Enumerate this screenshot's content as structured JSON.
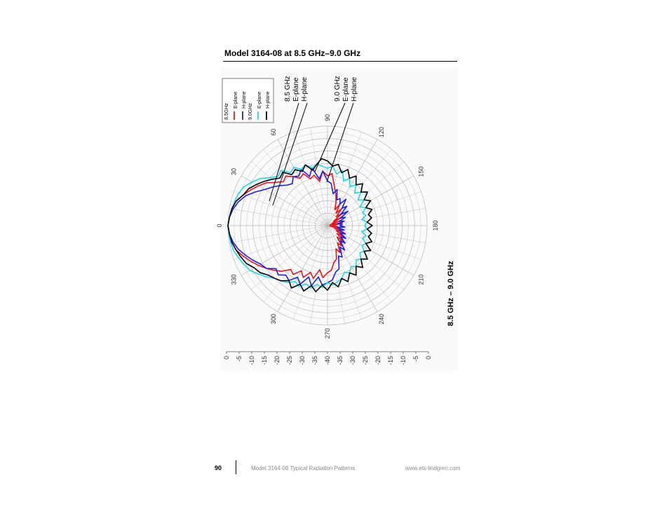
{
  "page": {
    "heading": "Model 3164-08 at 8.5 GHz–9.0 GHz",
    "footer_page_number": "90",
    "footer_title": "Model 3164-08 Typical Radiation Patterns",
    "footer_url": "www.ets-lindgren.com"
  },
  "colors": {
    "e_85": "#e8141c",
    "h_85": "#1a22e0",
    "e_90": "#22d8e8",
    "h_90": "#000000",
    "grid": "#b8b8b8"
  },
  "chart_data": {
    "type": "polar",
    "orientation": "rotated-90-ccw",
    "title": "8.5 GHz – 9.0 GHz",
    "angle_unit": "degrees",
    "angle_ticks": [
      "0",
      "30",
      "60",
      "90",
      "120",
      "150",
      "180",
      "210",
      "240",
      "270",
      "300",
      "330"
    ],
    "radial_unit": "dB",
    "radial_range": [
      -40,
      0
    ],
    "radial_ticks": [
      "0",
      "-5",
      "-10",
      "-15",
      "-20",
      "-25",
      "-30",
      "-35",
      "-40",
      "-35",
      "-30",
      "-25",
      "-20",
      "-15",
      "-10",
      "-5",
      "0"
    ],
    "grid": true,
    "legend": {
      "position": "top-left",
      "groups": [
        {
          "label": "8.5GHz",
          "entries": [
            {
              "series": "e_85",
              "label": "E-plane"
            },
            {
              "series": "h_85",
              "label": "H-plane"
            }
          ]
        },
        {
          "label": "9.0GHz",
          "entries": [
            {
              "series": "e_90",
              "label": "E-plane"
            },
            {
              "series": "h_90",
              "label": "H-plane"
            }
          ]
        }
      ]
    },
    "annotations": [
      {
        "lines": [
          "8.5 GHz",
          "E-plane",
          "H-plane"
        ]
      },
      {
        "lines": [
          "9.0 GHz",
          "E-plane",
          "H-plane"
        ]
      }
    ],
    "series": [
      {
        "key": "e_85",
        "values": [
          [
            0,
            0
          ],
          [
            5,
            -0.5
          ],
          [
            10,
            -1
          ],
          [
            15,
            -2
          ],
          [
            20,
            -4
          ],
          [
            25,
            -6
          ],
          [
            30,
            -8
          ],
          [
            35,
            -10
          ],
          [
            40,
            -13
          ],
          [
            45,
            -15
          ],
          [
            50,
            -14
          ],
          [
            55,
            -16
          ],
          [
            60,
            -18
          ],
          [
            65,
            -17
          ],
          [
            70,
            -20
          ],
          [
            75,
            -19
          ],
          [
            80,
            -22
          ],
          [
            85,
            -18
          ],
          [
            90,
            -20
          ],
          [
            95,
            -19
          ],
          [
            100,
            -24
          ],
          [
            105,
            -27
          ],
          [
            110,
            -30
          ],
          [
            115,
            -33
          ],
          [
            120,
            -30
          ],
          [
            125,
            -34
          ],
          [
            130,
            -31
          ],
          [
            135,
            -35
          ],
          [
            140,
            -32
          ],
          [
            145,
            -37
          ],
          [
            150,
            -33
          ],
          [
            155,
            -38
          ],
          [
            160,
            -35
          ],
          [
            165,
            -39
          ],
          [
            170,
            -34
          ],
          [
            175,
            -37
          ],
          [
            180,
            -38
          ],
          [
            185,
            -36
          ],
          [
            190,
            -39
          ],
          [
            195,
            -34
          ],
          [
            200,
            -37
          ],
          [
            205,
            -33
          ],
          [
            210,
            -36
          ],
          [
            215,
            -32
          ],
          [
            220,
            -35
          ],
          [
            225,
            -31
          ],
          [
            230,
            -34
          ],
          [
            235,
            -30
          ],
          [
            240,
            -32
          ],
          [
            245,
            -28
          ],
          [
            250,
            -30
          ],
          [
            255,
            -26
          ],
          [
            260,
            -25
          ],
          [
            265,
            -22
          ],
          [
            270,
            -21
          ],
          [
            275,
            -19
          ],
          [
            280,
            -22
          ],
          [
            285,
            -18
          ],
          [
            290,
            -20
          ],
          [
            295,
            -17
          ],
          [
            300,
            -19
          ],
          [
            305,
            -16
          ],
          [
            310,
            -17
          ],
          [
            315,
            -14
          ],
          [
            320,
            -12
          ],
          [
            325,
            -10
          ],
          [
            330,
            -8
          ],
          [
            335,
            -6
          ],
          [
            340,
            -4
          ],
          [
            345,
            -2
          ],
          [
            350,
            -1
          ],
          [
            355,
            -0.5
          ]
        ]
      },
      {
        "key": "h_85",
        "values": [
          [
            0,
            0
          ],
          [
            5,
            -0.5
          ],
          [
            10,
            -1.5
          ],
          [
            15,
            -3
          ],
          [
            20,
            -5
          ],
          [
            25,
            -8
          ],
          [
            30,
            -11
          ],
          [
            35,
            -13
          ],
          [
            40,
            -15
          ],
          [
            45,
            -17
          ],
          [
            50,
            -18
          ],
          [
            55,
            -16
          ],
          [
            60,
            -17
          ],
          [
            65,
            -15
          ],
          [
            70,
            -19
          ],
          [
            75,
            -16
          ],
          [
            80,
            -21
          ],
          [
            85,
            -18
          ],
          [
            90,
            -22
          ],
          [
            95,
            -23
          ],
          [
            100,
            -27
          ],
          [
            105,
            -25
          ],
          [
            110,
            -29
          ],
          [
            115,
            -28
          ],
          [
            120,
            -30
          ],
          [
            125,
            -27
          ],
          [
            130,
            -31
          ],
          [
            135,
            -29
          ],
          [
            140,
            -33
          ],
          [
            145,
            -30
          ],
          [
            150,
            -34
          ],
          [
            155,
            -32
          ],
          [
            160,
            -35
          ],
          [
            165,
            -33
          ],
          [
            170,
            -36
          ],
          [
            175,
            -34
          ],
          [
            180,
            -35
          ],
          [
            185,
            -33
          ],
          [
            190,
            -36
          ],
          [
            195,
            -33
          ],
          [
            200,
            -35
          ],
          [
            205,
            -32
          ],
          [
            210,
            -34
          ],
          [
            215,
            -31
          ],
          [
            220,
            -33
          ],
          [
            225,
            -30
          ],
          [
            230,
            -32
          ],
          [
            235,
            -28
          ],
          [
            240,
            -30
          ],
          [
            245,
            -26
          ],
          [
            250,
            -27
          ],
          [
            255,
            -22
          ],
          [
            260,
            -21
          ],
          [
            265,
            -18
          ],
          [
            270,
            -17
          ],
          [
            275,
            -16
          ],
          [
            280,
            -19
          ],
          [
            285,
            -15
          ],
          [
            290,
            -18
          ],
          [
            295,
            -14
          ],
          [
            300,
            -16
          ],
          [
            305,
            -13
          ],
          [
            310,
            -14
          ],
          [
            315,
            -12
          ],
          [
            320,
            -13
          ],
          [
            325,
            -10
          ],
          [
            330,
            -9
          ],
          [
            335,
            -7
          ],
          [
            340,
            -5
          ],
          [
            345,
            -3
          ],
          [
            350,
            -1.5
          ],
          [
            355,
            -0.5
          ]
        ]
      },
      {
        "key": "e_90",
        "values": [
          [
            0,
            0
          ],
          [
            5,
            -0.5
          ],
          [
            10,
            -1
          ],
          [
            15,
            -1.5
          ],
          [
            20,
            -2
          ],
          [
            25,
            -3
          ],
          [
            30,
            -5
          ],
          [
            35,
            -7
          ],
          [
            40,
            -10
          ],
          [
            45,
            -12
          ],
          [
            50,
            -11
          ],
          [
            55,
            -14
          ],
          [
            60,
            -13
          ],
          [
            65,
            -15
          ],
          [
            70,
            -14
          ],
          [
            75,
            -16
          ],
          [
            80,
            -15
          ],
          [
            85,
            -16
          ],
          [
            90,
            -17
          ],
          [
            95,
            -16
          ],
          [
            100,
            -19
          ],
          [
            105,
            -17
          ],
          [
            110,
            -21
          ],
          [
            115,
            -19
          ],
          [
            120,
            -22
          ],
          [
            125,
            -20
          ],
          [
            130,
            -23
          ],
          [
            135,
            -21
          ],
          [
            140,
            -24
          ],
          [
            145,
            -22
          ],
          [
            150,
            -25
          ],
          [
            155,
            -23
          ],
          [
            160,
            -25
          ],
          [
            165,
            -24
          ],
          [
            170,
            -26
          ],
          [
            175,
            -24
          ],
          [
            180,
            -25
          ],
          [
            185,
            -24
          ],
          [
            190,
            -26
          ],
          [
            195,
            -24
          ],
          [
            200,
            -25
          ],
          [
            205,
            -23
          ],
          [
            210,
            -24
          ],
          [
            215,
            -22
          ],
          [
            220,
            -23
          ],
          [
            225,
            -21
          ],
          [
            230,
            -22
          ],
          [
            235,
            -20
          ],
          [
            240,
            -21
          ],
          [
            245,
            -19
          ],
          [
            250,
            -20
          ],
          [
            255,
            -18
          ],
          [
            260,
            -17
          ],
          [
            265,
            -16
          ],
          [
            270,
            -17
          ],
          [
            275,
            -15
          ],
          [
            280,
            -16
          ],
          [
            285,
            -14
          ],
          [
            290,
            -15
          ],
          [
            295,
            -13
          ],
          [
            300,
            -14
          ],
          [
            305,
            -12
          ],
          [
            310,
            -11
          ],
          [
            315,
            -10
          ],
          [
            320,
            -8
          ],
          [
            325,
            -6
          ],
          [
            330,
            -4
          ],
          [
            335,
            -3
          ],
          [
            340,
            -2
          ],
          [
            345,
            -1
          ],
          [
            350,
            -0.5
          ],
          [
            355,
            -0.2
          ]
        ]
      },
      {
        "key": "h_90",
        "values": [
          [
            0,
            0
          ],
          [
            5,
            -0.5
          ],
          [
            10,
            -1
          ],
          [
            15,
            -2
          ],
          [
            20,
            -4
          ],
          [
            25,
            -5
          ],
          [
            30,
            -7
          ],
          [
            35,
            -9
          ],
          [
            40,
            -11
          ],
          [
            45,
            -13
          ],
          [
            50,
            -12
          ],
          [
            55,
            -15
          ],
          [
            60,
            -14
          ],
          [
            65,
            -16
          ],
          [
            70,
            -14
          ],
          [
            75,
            -17
          ],
          [
            80,
            -15
          ],
          [
            85,
            -13
          ],
          [
            90,
            -14
          ],
          [
            95,
            -16
          ],
          [
            100,
            -15
          ],
          [
            105,
            -18
          ],
          [
            110,
            -16
          ],
          [
            115,
            -19
          ],
          [
            120,
            -17
          ],
          [
            125,
            -20
          ],
          [
            130,
            -18
          ],
          [
            135,
            -21
          ],
          [
            140,
            -19
          ],
          [
            145,
            -22
          ],
          [
            150,
            -20
          ],
          [
            155,
            -23
          ],
          [
            160,
            -21
          ],
          [
            165,
            -23
          ],
          [
            170,
            -22
          ],
          [
            175,
            -24
          ],
          [
            180,
            -22
          ],
          [
            185,
            -24
          ],
          [
            190,
            -22
          ],
          [
            195,
            -23
          ],
          [
            200,
            -21
          ],
          [
            205,
            -23
          ],
          [
            210,
            -20
          ],
          [
            215,
            -22
          ],
          [
            220,
            -19
          ],
          [
            225,
            -21
          ],
          [
            230,
            -18
          ],
          [
            235,
            -20
          ],
          [
            240,
            -17
          ],
          [
            245,
            -19
          ],
          [
            250,
            -16
          ],
          [
            255,
            -18
          ],
          [
            260,
            -15
          ],
          [
            265,
            -17
          ],
          [
            270,
            -14
          ],
          [
            275,
            -16
          ],
          [
            280,
            -13
          ],
          [
            285,
            -15
          ],
          [
            290,
            -12
          ],
          [
            295,
            -14
          ],
          [
            300,
            -11
          ],
          [
            305,
            -13
          ],
          [
            310,
            -11
          ],
          [
            315,
            -10
          ],
          [
            320,
            -9
          ],
          [
            325,
            -7
          ],
          [
            330,
            -6
          ],
          [
            335,
            -4
          ],
          [
            340,
            -3
          ],
          [
            345,
            -2
          ],
          [
            350,
            -1
          ],
          [
            355,
            -0.5
          ]
        ]
      }
    ]
  }
}
